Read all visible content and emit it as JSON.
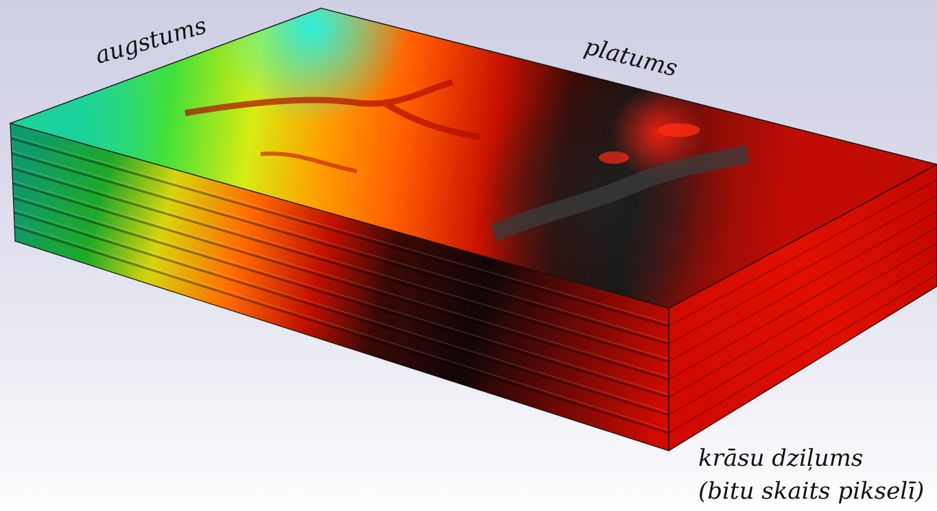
{
  "labels": {
    "height": "augstums",
    "width": "platums",
    "depth_line1": "krāsu dziļums",
    "depth_line2": "(bitu skaits pikselī)"
  },
  "colors": {
    "outline": "#111111",
    "low_elevation": "#18e0c0",
    "mid_low": "#28e038",
    "mid": "#f0ee10",
    "high": "#ff6a00",
    "higher": "#d81400",
    "highest": "#101010",
    "shadow": "#2a2a2a",
    "side_red": "#d40a00"
  },
  "layers": {
    "count": 8,
    "description_icon": "stacked-bitplane-layers"
  }
}
